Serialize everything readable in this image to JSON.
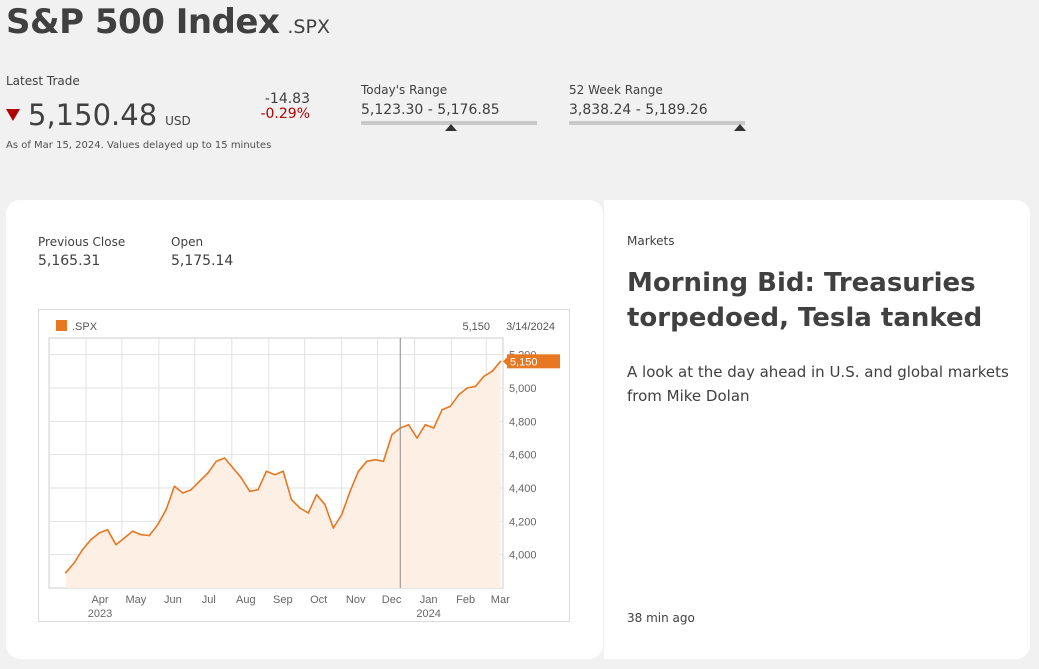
{
  "header": {
    "title": "S&P 500 Index",
    "ticker": ".SPX"
  },
  "quote": {
    "latest_label": "Latest Trade",
    "price": "5,150.48",
    "currency": "USD",
    "change_abs": "-14.83",
    "change_pct": "-0.29%",
    "direction": "down",
    "down_color": "#b00000",
    "as_of": "As of Mar 15, 2024. Values delayed up to 15 minutes"
  },
  "todays_range": {
    "label": "Today's Range",
    "value": "5,123.30 - 5,176.85",
    "position": 0.51
  },
  "week52_range": {
    "label": "52 Week Range",
    "value": "3,838.24 - 5,189.26",
    "position": 0.97
  },
  "stats": {
    "previous_close_label": "Previous Close",
    "previous_close": "5,165.31",
    "open_label": "Open",
    "open": "5,175.14"
  },
  "chart_data": {
    "type": "area",
    "legend": ".SPX",
    "hover_value": "5,150",
    "hover_date": "3/14/2024",
    "last_label": "5,150",
    "accent": "#e87722",
    "y_ticks": [
      "4,000",
      "4,200",
      "4,400",
      "4,600",
      "4,800",
      "5,000",
      "5,200"
    ],
    "ylim": [
      3800,
      5300
    ],
    "x_ticks": [
      "Apr",
      "May",
      "Jun",
      "Jul",
      "Aug",
      "Sep",
      "Oct",
      "Nov",
      "Dec",
      "Jan",
      "Feb",
      "Mar"
    ],
    "year_labels": [
      "2023",
      "2024"
    ],
    "x": [
      "2023-03-15",
      "2023-03-22",
      "2023-03-29",
      "2023-04-05",
      "2023-04-12",
      "2023-04-19",
      "2023-04-26",
      "2023-05-03",
      "2023-05-10",
      "2023-05-17",
      "2023-05-24",
      "2023-05-31",
      "2023-06-07",
      "2023-06-14",
      "2023-06-21",
      "2023-06-28",
      "2023-07-05",
      "2023-07-12",
      "2023-07-19",
      "2023-07-26",
      "2023-08-02",
      "2023-08-09",
      "2023-08-16",
      "2023-08-23",
      "2023-08-30",
      "2023-09-06",
      "2023-09-13",
      "2023-09-20",
      "2023-09-27",
      "2023-10-04",
      "2023-10-11",
      "2023-10-18",
      "2023-10-25",
      "2023-11-01",
      "2023-11-08",
      "2023-11-15",
      "2023-11-22",
      "2023-11-29",
      "2023-12-06",
      "2023-12-13",
      "2023-12-20",
      "2023-12-27",
      "2024-01-03",
      "2024-01-10",
      "2024-01-17",
      "2024-01-24",
      "2024-01-31",
      "2024-02-07",
      "2024-02-14",
      "2024-02-21",
      "2024-02-28",
      "2024-03-06",
      "2024-03-13"
    ],
    "values": [
      3892,
      3950,
      4030,
      4090,
      4130,
      4150,
      4060,
      4100,
      4140,
      4120,
      4115,
      4180,
      4270,
      4410,
      4370,
      4390,
      4440,
      4490,
      4560,
      4580,
      4520,
      4460,
      4380,
      4390,
      4500,
      4480,
      4500,
      4330,
      4280,
      4250,
      4360,
      4300,
      4160,
      4240,
      4380,
      4500,
      4560,
      4570,
      4560,
      4720,
      4760,
      4780,
      4700,
      4780,
      4760,
      4870,
      4890,
      4960,
      5000,
      5010,
      5070,
      5100,
      5160
    ]
  },
  "news": {
    "category": "Markets",
    "title": "Morning Bid: Treasuries torpedoed, Tesla tanked",
    "description": "A look at the day ahead in U.S. and global markets from Mike Dolan",
    "time": "38 min ago"
  }
}
